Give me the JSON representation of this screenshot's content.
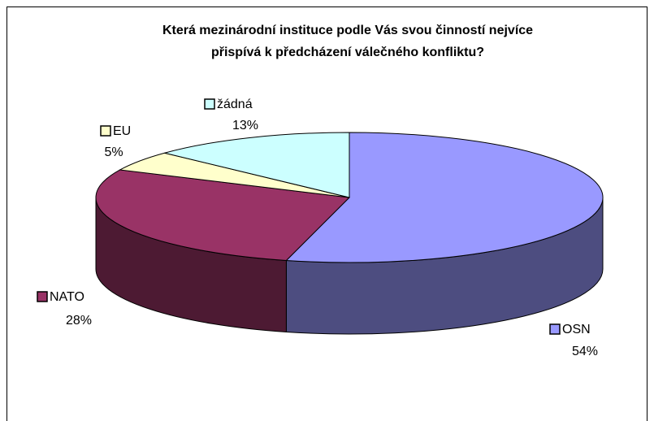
{
  "chart_data": {
    "type": "pie3d",
    "title": [
      "Která mezinárodní instituce podle Vás svou činností nejvíce",
      "přispívá k předcházení válečného konfliktu?"
    ],
    "categories": [
      "OSN",
      "NATO",
      "EU",
      "žádná"
    ],
    "values": [
      54,
      28,
      5,
      13
    ],
    "value_labels": [
      "54%",
      "28%",
      "5%",
      "13%"
    ],
    "colors": [
      "#9999ff",
      "#993366",
      "#ffffcc",
      "#ccffff"
    ]
  }
}
